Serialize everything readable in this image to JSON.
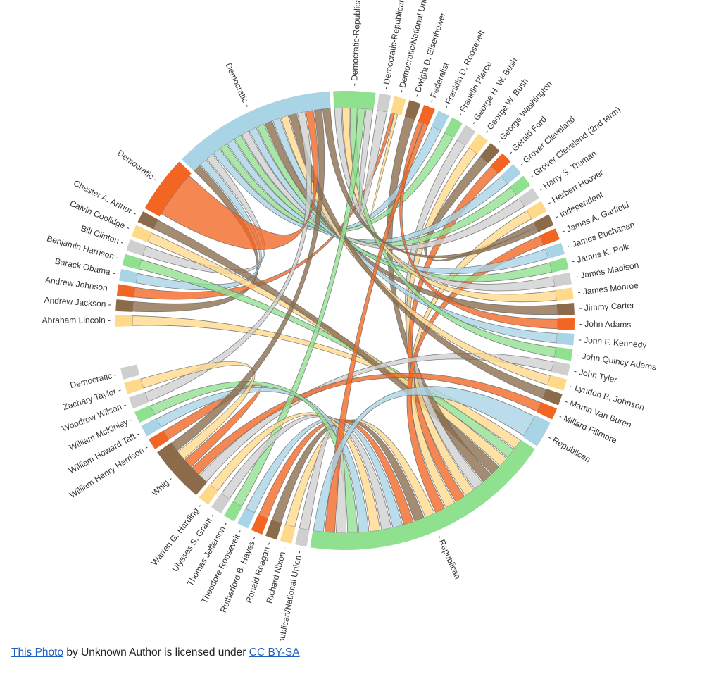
{
  "diagram": {
    "type": "chord",
    "colors": {
      "green": "#8fe08f",
      "blue": "#a8d4e6",
      "orange": "#f26522",
      "brown": "#8b6b4a",
      "gray": "#cfcfcf",
      "yellow": "#ffd98a"
    },
    "nodes": [
      {
        "label": "Abraham Lincoln",
        "color": "yellow"
      },
      {
        "label": "Andrew Jackson",
        "color": "brown"
      },
      {
        "label": "Andrew Johnson",
        "color": "orange"
      },
      {
        "label": "Barack Obama",
        "color": "blue"
      },
      {
        "label": "Benjamin Harrison",
        "color": "green"
      },
      {
        "label": "Bill Clinton",
        "color": "gray"
      },
      {
        "label": "Calvin Coolidge",
        "color": "yellow"
      },
      {
        "label": "Chester A. Arthur",
        "color": "brown"
      },
      {
        "label": "Democratic",
        "color": "orange",
        "weight": 4
      },
      {
        "label": "Democratic",
        "color": "blue",
        "weight": 11
      },
      {
        "label": "Democratic-Republican",
        "color": "green",
        "weight": 3
      },
      {
        "label": "Democratic-Republican/Natio",
        "color": "gray"
      },
      {
        "label": "Democratic/National Union",
        "color": "yellow"
      },
      {
        "label": "Dwight D. Eisenhower",
        "color": "brown"
      },
      {
        "label": "Federalist",
        "color": "orange"
      },
      {
        "label": "Franklin D. Roosevelt",
        "color": "blue"
      },
      {
        "label": "Franklin Pierce",
        "color": "green"
      },
      {
        "label": "George H. W. Bush",
        "color": "gray"
      },
      {
        "label": "George W. Bush",
        "color": "yellow"
      },
      {
        "label": "George Washington",
        "color": "brown"
      },
      {
        "label": "Gerald Ford",
        "color": "orange"
      },
      {
        "label": "Grover Cleveland",
        "color": "blue"
      },
      {
        "label": "Grover Cleveland (2nd term)",
        "color": "green"
      },
      {
        "label": "Harry S. Truman",
        "color": "gray"
      },
      {
        "label": "Herbert Hoover",
        "color": "yellow"
      },
      {
        "label": "Independent",
        "color": "brown"
      },
      {
        "label": "James A. Garfield",
        "color": "orange"
      },
      {
        "label": "James Buchanan",
        "color": "blue"
      },
      {
        "label": "James K. Polk",
        "color": "green"
      },
      {
        "label": "James Madison",
        "color": "gray"
      },
      {
        "label": "James Monroe",
        "color": "yellow"
      },
      {
        "label": "Jimmy Carter",
        "color": "brown"
      },
      {
        "label": "John Adams",
        "color": "orange"
      },
      {
        "label": "John F. Kennedy",
        "color": "blue"
      },
      {
        "label": "John Quincy Adams",
        "color": "green"
      },
      {
        "label": "John Tyler",
        "color": "gray"
      },
      {
        "label": "Lyndon B. Johnson",
        "color": "yellow"
      },
      {
        "label": "Martin Van Buren",
        "color": "brown"
      },
      {
        "label": "Millard Fillmore",
        "color": "orange"
      },
      {
        "label": "Republican",
        "color": "blue",
        "weight": 2
      },
      {
        "label": "Republican",
        "color": "green",
        "weight": 17
      },
      {
        "label": "Republican/National Union",
        "color": "gray"
      },
      {
        "label": "Richard Nixon",
        "color": "yellow"
      },
      {
        "label": "Ronald Reagan",
        "color": "brown"
      },
      {
        "label": "Rutherford B. Hayes",
        "color": "orange"
      },
      {
        "label": "Theodore Roosevelt",
        "color": "blue"
      },
      {
        "label": "Thomas Jefferson",
        "color": "green"
      },
      {
        "label": "Ulysses S. Grant",
        "color": "gray"
      },
      {
        "label": "Warren G. Harding",
        "color": "yellow"
      },
      {
        "label": "Whig",
        "color": "brown",
        "weight": 4
      },
      {
        "label": "William Henry Harrison",
        "color": "orange"
      },
      {
        "label": "William Howard Taft",
        "color": "blue"
      },
      {
        "label": "William McKinley",
        "color": "green"
      },
      {
        "label": "Woodrow Wilson",
        "color": "gray"
      },
      {
        "label": "Zachary Taylor",
        "color": "yellow"
      },
      {
        "label": "Democratic",
        "color": "gray"
      }
    ],
    "links": [
      [
        "Abraham Lincoln",
        40
      ],
      [
        "Andrew Jackson",
        9
      ],
      [
        "Andrew Johnson",
        12
      ],
      [
        "Barack Obama",
        9
      ],
      [
        "Benjamin Harrison",
        40
      ],
      [
        "Bill Clinton",
        9
      ],
      [
        "Calvin Coolidge",
        40
      ],
      [
        "Chester A. Arthur",
        40
      ],
      [
        "Dwight D. Eisenhower",
        40
      ],
      [
        "Franklin D. Roosevelt",
        9
      ],
      [
        "Franklin Pierce",
        9
      ],
      [
        "George H. W. Bush",
        40
      ],
      [
        "George W. Bush",
        40
      ],
      [
        "George Washington",
        25
      ],
      [
        "Gerald Ford",
        40
      ],
      [
        "Grover Cleveland",
        9
      ],
      [
        "Grover Cleveland (2nd term)",
        9
      ],
      [
        "Harry S. Truman",
        9
      ],
      [
        "Herbert Hoover",
        40
      ],
      [
        "James A. Garfield",
        40
      ],
      [
        "James Buchanan",
        9
      ],
      [
        "James K. Polk",
        9
      ],
      [
        "James Madison",
        10
      ],
      [
        "James Monroe",
        10
      ],
      [
        "Jimmy Carter",
        9
      ],
      [
        "John Adams",
        14
      ],
      [
        "John F. Kennedy",
        9
      ],
      [
        "John Quincy Adams",
        10
      ],
      [
        "John Tyler",
        49
      ],
      [
        "Lyndon B. Johnson",
        9
      ],
      [
        "Martin Van Buren",
        9
      ],
      [
        "Millard Fillmore",
        49
      ],
      [
        "Richard Nixon",
        40
      ],
      [
        "Ronald Reagan",
        40
      ],
      [
        "Rutherford B. Hayes",
        40
      ],
      [
        "Theodore Roosevelt",
        40
      ],
      [
        "Thomas Jefferson",
        10
      ],
      [
        "Ulysses S. Grant",
        40
      ],
      [
        "Warren G. Harding",
        40
      ],
      [
        "William Henry Harrison",
        49
      ],
      [
        "William Howard Taft",
        40
      ],
      [
        "William McKinley",
        40
      ],
      [
        "Woodrow Wilson",
        9
      ],
      [
        "Zachary Taylor",
        49
      ],
      [
        "Democratic-Republican/Natio",
        10
      ],
      [
        "Democratic/National Union",
        12
      ],
      [
        "Republican/National Union",
        40
      ],
      [
        "Democratic",
        9
      ],
      [
        "Whig",
        9
      ],
      [
        "Federalist",
        40
      ],
      [
        "Independent",
        9
      ],
      [
        "Republican",
        40
      ]
    ]
  },
  "caption": {
    "link1": "This Photo",
    "middle": " by Unknown Author is licensed under ",
    "link2": "CC BY-SA"
  }
}
